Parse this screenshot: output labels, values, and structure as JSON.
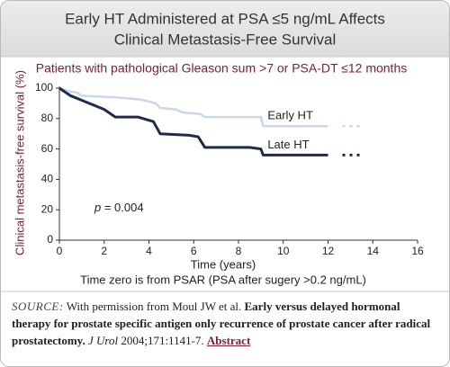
{
  "chart_data": {
    "type": "line",
    "title": [
      "Early HT Administered at PSA ≤5 ng/mL Affects",
      "Clinical Metastasis-Free Survival"
    ],
    "subtitle": "Patients with pathological Gleason sum >7 or PSA-DT ≤12 months",
    "x_label": "Time (years)",
    "y_label": "Clinical metastasis-free survival (%)",
    "note": "Time zero is from PSAR (PSA after sugery >0.2 ng/mL)",
    "annotation": {
      "symbol": "p",
      "text": " = 0.004"
    },
    "xlim": [
      0,
      16
    ],
    "xticks": [
      0,
      2,
      4,
      6,
      8,
      10,
      12,
      14,
      16
    ],
    "ylim": [
      0,
      100
    ],
    "yticks": [
      0,
      20,
      40,
      60,
      80,
      100
    ],
    "series": [
      {
        "name": "Early HT",
        "color": "#c9d7ea",
        "x": [
          0,
          0.4,
          0.8,
          1.0,
          2.5,
          3.3,
          3.8,
          4.3,
          4.5,
          5.2,
          5.5,
          6.3,
          6.5,
          9,
          9.1,
          12
        ],
        "values": [
          100,
          98,
          97,
          95,
          94,
          93,
          92,
          90,
          87,
          86,
          84,
          83,
          81,
          81,
          75,
          75
        ]
      },
      {
        "name": "Late HT",
        "color": "#1f2b4d",
        "x": [
          0,
          0.5,
          1,
          2,
          2.5,
          3.5,
          4.2,
          4.5,
          5.8,
          6.2,
          6.5,
          8.5,
          9,
          9.1,
          12
        ],
        "values": [
          100,
          95,
          92,
          86,
          81,
          81,
          78,
          70,
          69,
          68,
          61,
          61,
          60,
          56,
          56
        ]
      }
    ]
  },
  "source": {
    "label": "SOURCE:",
    "text": "With permission from Moul JW et al.",
    "article_title": "Early versus delayed hormonal therapy for prostate specific antigen only recurrence of prostate cancer after radical prostatectomy.",
    "journal": "J Urol",
    "citation": "2004;171:1141-7.",
    "link": "Abstract"
  }
}
